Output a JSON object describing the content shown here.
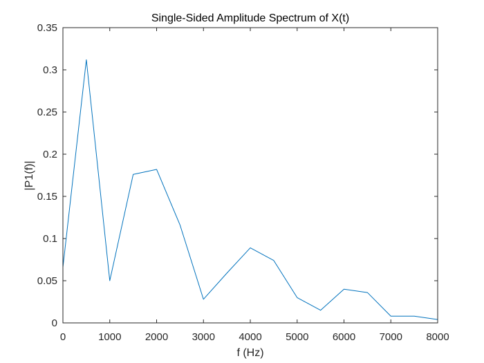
{
  "chart_data": {
    "type": "line",
    "title": "Single-Sided Amplitude Spectrum of X(t)",
    "xlabel": "f (Hz)",
    "ylabel": "|P1(f)|",
    "xlim": [
      0,
      8000
    ],
    "ylim": [
      0,
      0.35
    ],
    "xticks": [
      0,
      1000,
      2000,
      3000,
      4000,
      5000,
      6000,
      7000,
      8000
    ],
    "xtick_labels": [
      "0",
      "1000",
      "2000",
      "3000",
      "4000",
      "5000",
      "6000",
      "7000",
      "8000"
    ],
    "yticks": [
      0,
      0.05,
      0.1,
      0.15,
      0.2,
      0.25,
      0.3,
      0.35
    ],
    "ytick_labels": [
      "0",
      "0.05",
      "0.1",
      "0.15",
      "0.2",
      "0.25",
      "0.3",
      "0.35"
    ],
    "grid": false,
    "line_color": "#0072bd",
    "series": [
      {
        "x": [
          0,
          500,
          1000,
          1500,
          2000,
          2500,
          3000,
          3500,
          4000,
          4500,
          5000,
          5500,
          6000,
          6500,
          7000,
          7500,
          8000
        ],
        "values": [
          0.066,
          0.312,
          0.05,
          0.176,
          0.182,
          0.116,
          0.028,
          0.059,
          0.089,
          0.074,
          0.03,
          0.015,
          0.04,
          0.036,
          0.008,
          0.008,
          0.004
        ]
      }
    ]
  }
}
